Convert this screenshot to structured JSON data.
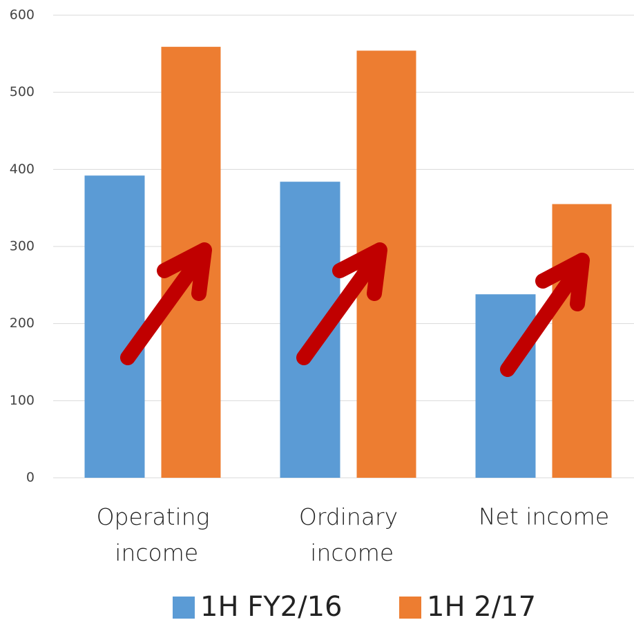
{
  "chart_data": {
    "type": "bar",
    "categories": [
      "Operating income",
      "Ordinary income",
      "Net income"
    ],
    "series": [
      {
        "name": "1H FY2/16",
        "color": "#5b9bd5",
        "values": [
          392,
          384,
          238
        ]
      },
      {
        "name": "1H 2/17",
        "color": "#ed7d31",
        "values": [
          559,
          554,
          355
        ]
      }
    ],
    "ylim": [
      0,
      600
    ],
    "yticks": [
      0,
      100,
      200,
      300,
      400,
      500,
      600
    ],
    "grid": true,
    "legend": "bottom"
  }
}
